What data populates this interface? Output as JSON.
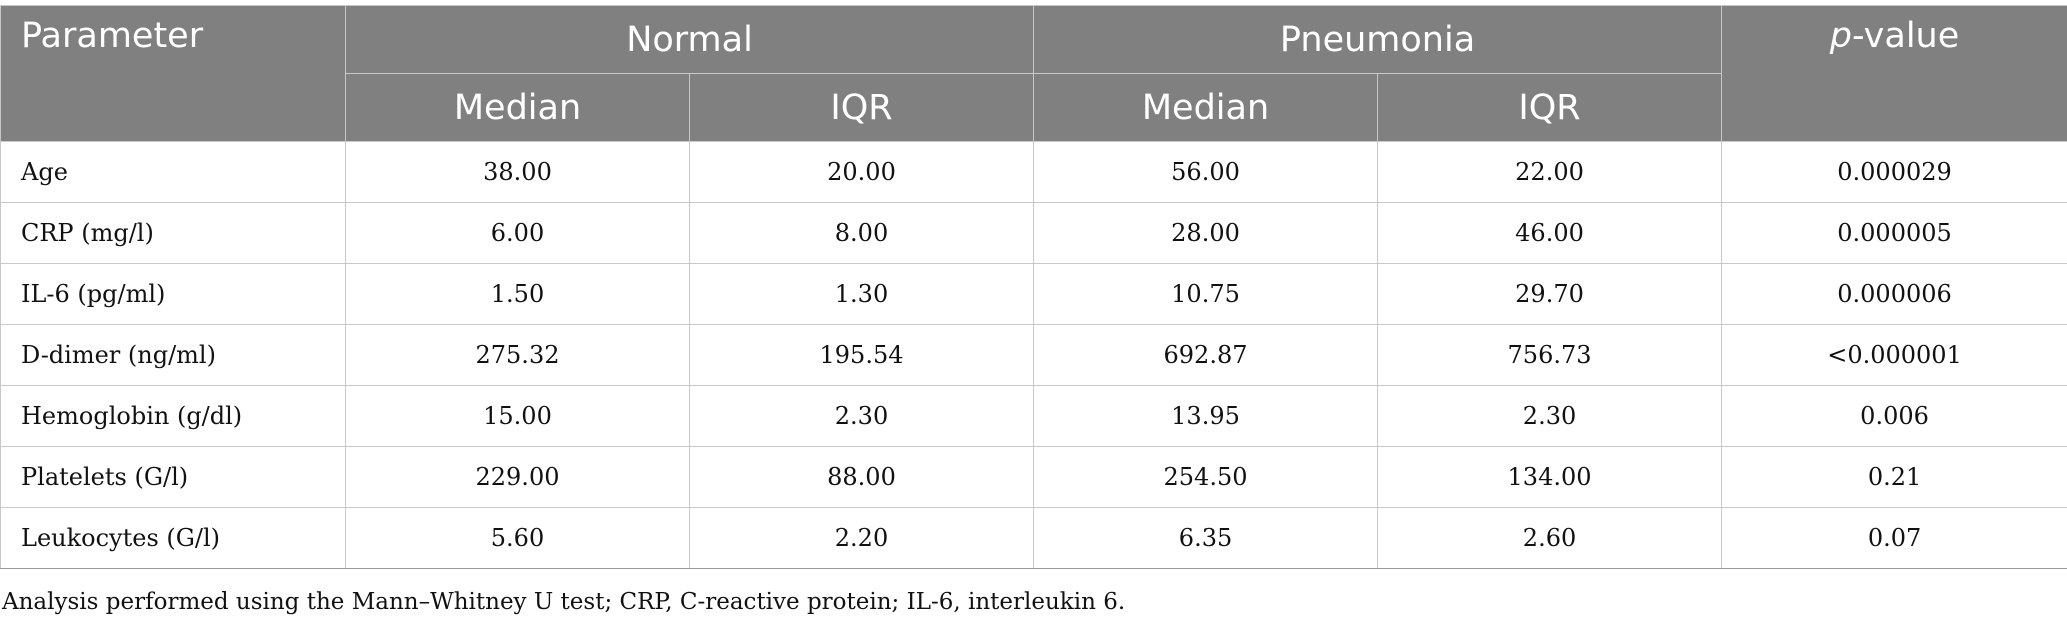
{
  "table": {
    "header": {
      "parameter": "Parameter",
      "groups": [
        "Normal",
        "Pneumonia"
      ],
      "p_value_italic": "p",
      "p_value_rest": "-value",
      "subheaders": [
        "Median",
        "IQR",
        "Median",
        "IQR"
      ]
    },
    "rows": [
      {
        "label": "Age",
        "values": [
          "38.00",
          "20.00",
          "56.00",
          "22.00",
          "0.000029"
        ]
      },
      {
        "label": "CRP (mg/l)",
        "values": [
          "6.00",
          "8.00",
          "28.00",
          "46.00",
          "0.000005"
        ]
      },
      {
        "label": "IL-6 (pg/ml)",
        "values": [
          "1.50",
          "1.30",
          "10.75",
          "29.70",
          "0.000006"
        ]
      },
      {
        "label": "D-dimer (ng/ml)",
        "values": [
          "275.32",
          "195.54",
          "692.87",
          "756.73",
          "<0.000001"
        ]
      },
      {
        "label": "Hemoglobin (g/dl)",
        "values": [
          "15.00",
          "2.30",
          "13.95",
          "2.30",
          "0.006"
        ]
      },
      {
        "label": "Platelets (G/l)",
        "values": [
          "229.00",
          "88.00",
          "254.50",
          "134.00",
          "0.21"
        ]
      },
      {
        "label": "Leukocytes (G/l)",
        "values": [
          "5.60",
          "2.20",
          "6.35",
          "2.60",
          "0.07"
        ]
      }
    ]
  },
  "footnote": "Analysis performed using the Mann–Whitney U test; CRP, C-reactive protein; IL-6, interleukin 6.",
  "colors": {
    "header_background": "#808080",
    "header_text": "#ffffff",
    "grid_lines": "#c8c8c8"
  }
}
